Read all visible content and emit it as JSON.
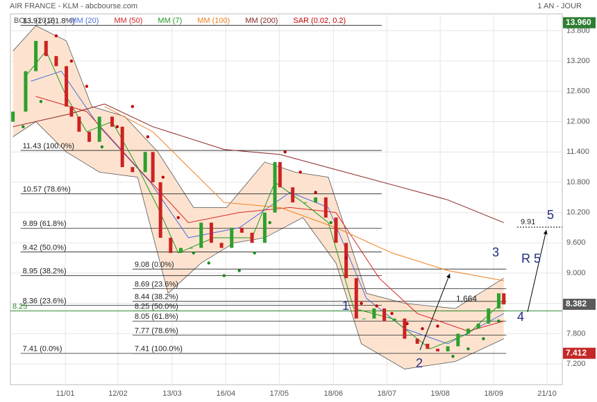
{
  "header": {
    "title": "AIR FRANCE - KLM - abcbourse.com",
    "period": "1 AN - JOUR"
  },
  "chart_data": {
    "type": "candlestick",
    "xlim": [
      0,
      217
    ],
    "ylim": [
      6.79,
      14.41
    ],
    "grid": true,
    "xticks": [
      {
        "value": 21.6,
        "label": "11/01"
      },
      {
        "value": 42.3,
        "label": "12/02"
      },
      {
        "value": 63.6,
        "label": "13/03"
      },
      {
        "value": 84.7,
        "label": "16/04"
      },
      {
        "value": 105.7,
        "label": "17/05"
      },
      {
        "value": 127,
        "label": "18/06"
      },
      {
        "value": 148,
        "label": "18/07"
      },
      {
        "value": 169,
        "label": "19/08"
      },
      {
        "value": 190,
        "label": "18/09"
      },
      {
        "value": 211,
        "label": "21/10"
      }
    ],
    "yticks": [
      {
        "value": 13.8,
        "label": "13.800"
      },
      {
        "value": 13.2,
        "label": "13.200"
      },
      {
        "value": 12.6,
        "label": "12.600"
      },
      {
        "value": 12,
        "label": "12.000"
      },
      {
        "value": 11.4,
        "label": "11.400"
      },
      {
        "value": 10.8,
        "label": "10.800"
      },
      {
        "value": 10.2,
        "label": "10.200"
      },
      {
        "value": 9.6,
        "label": "9.600"
      },
      {
        "value": 9,
        "label": "9.000"
      },
      {
        "value": 8.4,
        "label": "8.400"
      },
      {
        "value": 7.8,
        "label": "7.800"
      },
      {
        "value": 7.2,
        "label": "7.200"
      }
    ],
    "candles": {
      "up_color": "#2ca02c",
      "down_color": "#cc2222",
      "x": [
        1,
        6,
        10,
        14,
        18,
        22,
        24,
        27,
        31,
        35,
        40,
        44,
        48,
        53,
        56,
        59,
        63,
        67,
        71,
        75,
        79,
        83,
        87,
        91,
        95,
        100,
        104,
        106,
        111,
        116,
        120,
        124,
        128,
        132,
        136,
        139,
        143,
        147,
        151,
        155,
        160,
        164,
        168,
        172,
        176,
        180,
        184,
        188,
        192,
        194
      ],
      "open": [
        12.0,
        12.2,
        13.0,
        13.6,
        13.3,
        13.1,
        12.3,
        12.1,
        11.8,
        11.6,
        12.1,
        11.9,
        11.1,
        11.0,
        11.4,
        10.8,
        9.7,
        9.4,
        9.5,
        9.5,
        10.0,
        9.6,
        9.5,
        9.9,
        9.8,
        9.6,
        10.2,
        11.2,
        10.7,
        10.4,
        10.4,
        10.5,
        10.1,
        9.6,
        8.9,
        8.1,
        8.1,
        8.3,
        8.05,
        8.1,
        7.7,
        7.6,
        7.5,
        7.45,
        7.55,
        7.8,
        7.9,
        8.0,
        8.3,
        8.6
      ],
      "close": [
        12.2,
        13.0,
        13.6,
        13.3,
        13.1,
        12.3,
        12.1,
        11.8,
        11.6,
        12.1,
        11.9,
        11.1,
        11.0,
        11.4,
        10.8,
        9.7,
        9.4,
        9.5,
        9.5,
        10.0,
        9.6,
        9.5,
        9.9,
        9.8,
        9.6,
        10.2,
        11.2,
        10.7,
        10.4,
        10.4,
        10.5,
        10.1,
        9.6,
        8.9,
        8.1,
        8.1,
        8.3,
        8.05,
        8.1,
        7.7,
        7.6,
        7.5,
        7.45,
        7.55,
        7.8,
        7.9,
        8.0,
        8.3,
        8.6,
        8.38
      ]
    },
    "bollinger": {
      "name": "BOLL (20,2)",
      "color": "#555555",
      "fill": "#fde3cf",
      "upper": {
        "x": [
          1,
          10,
          22,
          32,
          45,
          58,
          72,
          85,
          100,
          112,
          125,
          140,
          155,
          175,
          194
        ],
        "values": [
          13.4,
          13.9,
          13.6,
          12.3,
          12.1,
          11.4,
          10.3,
          10.3,
          11.2,
          11.0,
          10.9,
          8.6,
          8.4,
          8.3,
          8.9
        ]
      },
      "lower": {
        "x": [
          1,
          10,
          22,
          35,
          50,
          62,
          75,
          88,
          100,
          115,
          128,
          138,
          155,
          175,
          194
        ],
        "values": [
          11.7,
          12.0,
          11.4,
          11.0,
          10.9,
          8.6,
          9.2,
          9.6,
          9.7,
          10.1,
          9.2,
          7.6,
          7.1,
          7.25,
          7.7
        ]
      }
    },
    "series": [
      {
        "name": "MM (20)",
        "color": "#4a6fe0",
        "x": [
          8,
          20,
          35,
          55,
          70,
          90,
          110,
          125,
          140,
          155,
          172,
          194
        ],
        "values": [
          12.8,
          13.0,
          11.9,
          10.8,
          9.7,
          9.9,
          10.6,
          10.3,
          8.5,
          7.9,
          7.6,
          8.2
        ]
      },
      {
        "name": "MM (50)",
        "color": "#d62728",
        "x": [
          10,
          30,
          48,
          70,
          90,
          110,
          128,
          145,
          160,
          180,
          194
        ],
        "values": [
          12.5,
          12.2,
          11.2,
          10.0,
          10.2,
          10.3,
          10.2,
          8.9,
          8.2,
          7.85,
          8.05
        ]
      },
      {
        "name": "MM (7)",
        "color": "#1f9a1f",
        "x": [
          6,
          14,
          22,
          30,
          40,
          50,
          58,
          66,
          80,
          95,
          104,
          115,
          125,
          135,
          150,
          165,
          180,
          194
        ],
        "values": [
          12.9,
          13.4,
          12.5,
          11.8,
          12.0,
          11.1,
          10.3,
          9.4,
          9.7,
          9.7,
          10.8,
          10.4,
          10.0,
          8.3,
          8.1,
          7.5,
          7.8,
          8.45
        ]
      },
      {
        "name": "MM (100)",
        "color": "#f07f1e",
        "x": [
          37,
          56,
          84,
          106,
          128,
          150,
          172,
          194
        ],
        "values": [
          12.3,
          11.8,
          10.4,
          10.3,
          9.9,
          9.4,
          9.05,
          8.85
        ]
      },
      {
        "name": "MM (200)",
        "color": "#8b2323",
        "x": [
          1,
          23,
          37,
          56,
          84,
          106,
          128,
          150,
          172,
          194
        ],
        "values": [
          11.9,
          12.15,
          12.35,
          11.9,
          11.45,
          11.35,
          11.05,
          10.75,
          10.45,
          10.0
        ]
      }
    ],
    "sar": {
      "name": "SAR (0.02, 0.2)",
      "color": "#c00000",
      "below_color": "#1a8a1a",
      "x": [
        5,
        12,
        18,
        24,
        30,
        36,
        42,
        48,
        54,
        60,
        66,
        72,
        78,
        84,
        90,
        96,
        102,
        108,
        114,
        120,
        126,
        132,
        138,
        144,
        150,
        156,
        162,
        168,
        174,
        180,
        186,
        192
      ],
      "values": [
        11.9,
        12.4,
        13.7,
        13.2,
        12.7,
        11.5,
        11.9,
        12.3,
        11.7,
        10.9,
        10.1,
        9.4,
        9.2,
        8.95,
        9.05,
        9.4,
        10.0,
        11.4,
        11.0,
        10.6,
        10.0,
        9.3,
        8.4,
        8.35,
        8.2,
        8.0,
        7.9,
        7.95,
        7.35,
        7.5,
        7.7,
        8.05
      ]
    },
    "fibonacci": [
      {
        "x_range": [
          4,
          146
        ],
        "levels": [
          {
            "value": 13.91,
            "label": "13.91  (161.8%)"
          },
          {
            "value": 11.43,
            "label": "11.43  (100.0%)"
          },
          {
            "value": 10.57,
            "label": "10.57  (78.6%)"
          },
          {
            "value": 9.89,
            "label": "9.89  (61.8%)"
          },
          {
            "value": 9.42,
            "label": "9.42  (50.0%)"
          },
          {
            "value": 8.95,
            "label": "8.95  (38.2%)"
          },
          {
            "value": 8.36,
            "label": "8.36  (23.6%)"
          },
          {
            "value": 7.41,
            "label": "7.41  (0.0%)"
          }
        ]
      },
      {
        "x_range": [
          48,
          195
        ],
        "levels": [
          {
            "value": 9.08,
            "label": "9.08  (0.0%)"
          },
          {
            "value": 8.69,
            "label": "8.69  (23.6%)"
          },
          {
            "value": 8.44,
            "label": "8.44  (38.2%)"
          },
          {
            "value": 8.25,
            "label": "8.25  (50.0%)"
          },
          {
            "value": 8.05,
            "label": "8.05  (61.8%)"
          },
          {
            "value": 7.77,
            "label": "7.77  (78.6%)"
          },
          {
            "value": 7.41,
            "label": "7.41  (100.0%)"
          }
        ]
      }
    ],
    "support": {
      "value": 8.25,
      "label": "8.25",
      "color": "#2e8b2e"
    },
    "target": {
      "value": 9.91,
      "label": "9.91"
    },
    "price_tags": [
      {
        "value": 13.96,
        "label": "13.960",
        "color": "#2e7d32"
      },
      {
        "value": 8.382,
        "label": "8.382",
        "color": "#5a5a5a"
      },
      {
        "value": 7.412,
        "label": "7.412",
        "color": "#c62828"
      }
    ],
    "annotations": [
      "1",
      "2",
      "3",
      "4",
      "5",
      "R 5",
      "1,664"
    ]
  }
}
